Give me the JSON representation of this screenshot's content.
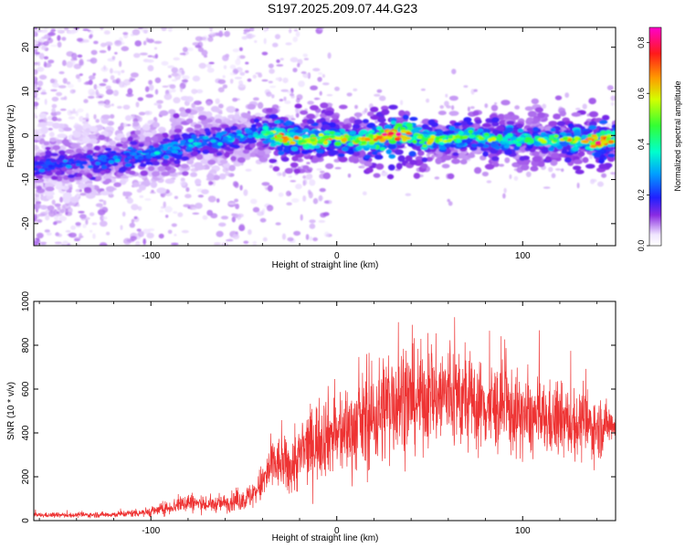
{
  "title": "S197.2025.209.07.44.G23",
  "chart_data": [
    {
      "type": "heatmap",
      "title": "S197.2025.209.07.44.G23",
      "xlabel": "Height of straight line (km)",
      "ylabel": "Frequency (Hz)",
      "xlim": [
        -163,
        150
      ],
      "ylim": [
        -25,
        24.5
      ],
      "xticks": [
        -100,
        0,
        100
      ],
      "yticks": [
        -20,
        -10,
        0,
        10,
        20
      ],
      "colorbar": {
        "label": "Normalized spectral amplitude",
        "range": [
          0.0,
          0.86
        ],
        "ticks": [
          "0.0",
          "0.2",
          "0.4",
          "0.6",
          "0.8"
        ],
        "colormap": "rainbow (white-violet-blue-cyan-green-yellow-red-magenta)"
      },
      "ridge_center_freq": {
        "x": [
          -163,
          -150,
          -130,
          -115,
          -100,
          -90,
          -80,
          -70,
          -60,
          -50,
          -40,
          -30,
          -20,
          -10,
          0,
          10,
          20,
          30,
          40,
          50,
          60,
          70,
          80,
          90,
          100,
          110,
          120,
          130,
          140,
          150
        ],
        "y": [
          -7,
          -6.5,
          -6,
          -5,
          -4,
          -3,
          -2,
          -1.5,
          -1,
          0,
          0.5,
          0,
          -1,
          -1,
          -0.5,
          -1,
          -1,
          0.5,
          0,
          -1,
          -1,
          0,
          -0.5,
          -1,
          -1,
          -1,
          -1,
          -1,
          -1.5,
          -1
        ]
      },
      "ridge_peak_amplitude": {
        "x": [
          -163,
          -130,
          -110,
          -90,
          -70,
          -50,
          -35,
          -28,
          -20,
          -5,
          10,
          30,
          45,
          60,
          80,
          100,
          120,
          140,
          150
        ],
        "y": [
          0.25,
          0.28,
          0.3,
          0.35,
          0.3,
          0.35,
          0.5,
          0.8,
          0.6,
          0.65,
          0.55,
          0.85,
          0.6,
          0.5,
          0.55,
          0.5,
          0.55,
          0.8,
          0.6
        ]
      },
      "grid": false
    },
    {
      "type": "line",
      "xlabel": "Height of straight line (km)",
      "ylabel": "SNR (10 * v/v)",
      "xlim": [
        -163,
        150
      ],
      "ylim": [
        0,
        1000
      ],
      "xticks": [
        -100,
        0,
        100
      ],
      "yticks": [
        0,
        200,
        400,
        600,
        800,
        1000
      ],
      "color": "#ee3333",
      "envelope": {
        "x": [
          -163,
          -140,
          -120,
          -100,
          -90,
          -80,
          -70,
          -60,
          -50,
          -45,
          -40,
          -35,
          -30,
          -25,
          -20,
          -15,
          -10,
          -5,
          0,
          10,
          20,
          30,
          40,
          50,
          60,
          70,
          80,
          90,
          100,
          110,
          120,
          130,
          140,
          150
        ],
        "mean": [
          25,
          25,
          28,
          40,
          60,
          85,
          70,
          80,
          95,
          120,
          170,
          250,
          260,
          240,
          290,
          340,
          370,
          400,
          380,
          430,
          470,
          560,
          550,
          560,
          580,
          540,
          520,
          510,
          470,
          460,
          450,
          440,
          420,
          450
        ],
        "amplitude": [
          12,
          12,
          15,
          25,
          35,
          55,
          35,
          45,
          55,
          70,
          100,
          140,
          130,
          150,
          170,
          190,
          200,
          210,
          200,
          230,
          260,
          300,
          260,
          240,
          290,
          240,
          220,
          230,
          200,
          190,
          180,
          170,
          160,
          80
        ]
      },
      "grid": false
    }
  ]
}
